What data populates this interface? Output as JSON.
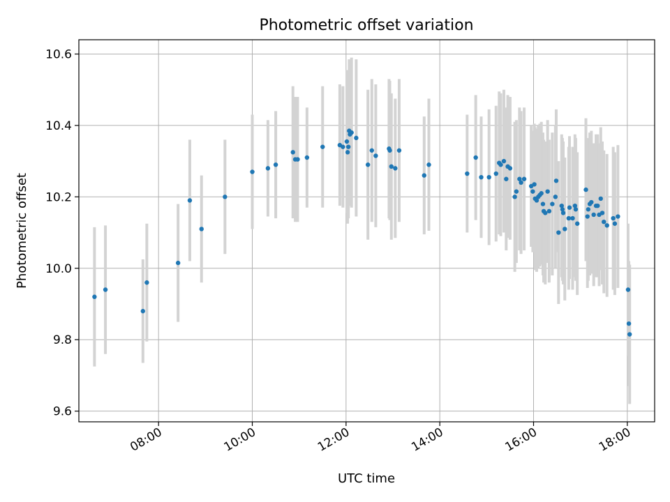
{
  "chart_data": {
    "type": "scatter",
    "title": "Photometric offset variation",
    "xlabel": "UTC time",
    "ylabel": "Photometric offset",
    "x_axis_kind": "time",
    "x_ticks": [
      "08:00",
      "10:00",
      "12:00",
      "14:00",
      "16:00",
      "18:00"
    ],
    "y_ticks": [
      "9.6",
      "9.8",
      "10.0",
      "10.2",
      "10.4",
      "10.6"
    ],
    "xlim": [
      "06:18",
      "18:35"
    ],
    "ylim": [
      9.57,
      10.64
    ],
    "grid": true,
    "legend": "none",
    "colors": {
      "points": "#1f77b4",
      "error_bars": "#d3d3d3",
      "grid": "#b0b0b0"
    },
    "points": [
      {
        "t": "06:38",
        "y": 9.92,
        "err": 0.195
      },
      {
        "t": "06:52",
        "y": 9.94,
        "err": 0.18
      },
      {
        "t": "07:40",
        "y": 9.88,
        "err": 0.145
      },
      {
        "t": "07:45",
        "y": 9.96,
        "err": 0.165
      },
      {
        "t": "08:25",
        "y": 10.015,
        "err": 0.165
      },
      {
        "t": "08:40",
        "y": 10.19,
        "err": 0.17
      },
      {
        "t": "08:55",
        "y": 10.11,
        "err": 0.15
      },
      {
        "t": "09:25",
        "y": 10.2,
        "err": 0.16
      },
      {
        "t": "10:00",
        "y": 10.27,
        "err": 0.16
      },
      {
        "t": "10:20",
        "y": 10.28,
        "err": 0.135
      },
      {
        "t": "10:30",
        "y": 10.29,
        "err": 0.15
      },
      {
        "t": "10:52",
        "y": 10.325,
        "err": 0.185
      },
      {
        "t": "10:55",
        "y": 10.305,
        "err": 0.175
      },
      {
        "t": "10:58",
        "y": 10.305,
        "err": 0.175
      },
      {
        "t": "11:10",
        "y": 10.31,
        "err": 0.14
      },
      {
        "t": "11:30",
        "y": 10.34,
        "err": 0.17
      },
      {
        "t": "11:52",
        "y": 10.345,
        "err": 0.17
      },
      {
        "t": "11:56",
        "y": 10.34,
        "err": 0.17
      },
      {
        "t": "12:01",
        "y": 10.355,
        "err": 0.2
      },
      {
        "t": "12:02",
        "y": 10.325,
        "err": 0.2
      },
      {
        "t": "12:03",
        "y": 10.34,
        "err": 0.2
      },
      {
        "t": "12:04",
        "y": 10.385,
        "err": 0.2
      },
      {
        "t": "12:05",
        "y": 10.375,
        "err": 0.2
      },
      {
        "t": "12:07",
        "y": 10.38,
        "err": 0.21
      },
      {
        "t": "12:13",
        "y": 10.365,
        "err": 0.22
      },
      {
        "t": "12:28",
        "y": 10.29,
        "err": 0.21
      },
      {
        "t": "12:33",
        "y": 10.33,
        "err": 0.2
      },
      {
        "t": "12:38",
        "y": 10.315,
        "err": 0.2
      },
      {
        "t": "12:55",
        "y": 10.335,
        "err": 0.195
      },
      {
        "t": "12:56",
        "y": 10.33,
        "err": 0.195
      },
      {
        "t": "12:58",
        "y": 10.285,
        "err": 0.205
      },
      {
        "t": "13:03",
        "y": 10.28,
        "err": 0.195
      },
      {
        "t": "13:08",
        "y": 10.33,
        "err": 0.2
      },
      {
        "t": "13:40",
        "y": 10.26,
        "err": 0.165
      },
      {
        "t": "13:46",
        "y": 10.29,
        "err": 0.185
      },
      {
        "t": "14:35",
        "y": 10.265,
        "err": 0.165
      },
      {
        "t": "14:46",
        "y": 10.31,
        "err": 0.175
      },
      {
        "t": "14:53",
        "y": 10.255,
        "err": 0.17
      },
      {
        "t": "15:03",
        "y": 10.255,
        "err": 0.19
      },
      {
        "t": "15:12",
        "y": 10.265,
        "err": 0.19
      },
      {
        "t": "15:16",
        "y": 10.295,
        "err": 0.2
      },
      {
        "t": "15:18",
        "y": 10.29,
        "err": 0.2
      },
      {
        "t": "15:22",
        "y": 10.3,
        "err": 0.2
      },
      {
        "t": "15:25",
        "y": 10.25,
        "err": 0.2
      },
      {
        "t": "15:27",
        "y": 10.285,
        "err": 0.2
      },
      {
        "t": "15:30",
        "y": 10.28,
        "err": 0.2
      },
      {
        "t": "15:36",
        "y": 10.2,
        "err": 0.21
      },
      {
        "t": "15:38",
        "y": 10.215,
        "err": 0.2
      },
      {
        "t": "15:42",
        "y": 10.25,
        "err": 0.2
      },
      {
        "t": "15:44",
        "y": 10.24,
        "err": 0.2
      },
      {
        "t": "15:48",
        "y": 10.25,
        "err": 0.2
      },
      {
        "t": "15:57",
        "y": 10.23,
        "err": 0.17
      },
      {
        "t": "15:59",
        "y": 10.215,
        "err": 0.17
      },
      {
        "t": "16:01",
        "y": 10.235,
        "err": 0.17
      },
      {
        "t": "16:02",
        "y": 10.195,
        "err": 0.2
      },
      {
        "t": "16:04",
        "y": 10.19,
        "err": 0.2
      },
      {
        "t": "16:06",
        "y": 10.2,
        "err": 0.2
      },
      {
        "t": "16:08",
        "y": 10.205,
        "err": 0.2
      },
      {
        "t": "16:10",
        "y": 10.21,
        "err": 0.2
      },
      {
        "t": "16:12",
        "y": 10.18,
        "err": 0.2
      },
      {
        "t": "16:13",
        "y": 10.16,
        "err": 0.2
      },
      {
        "t": "16:15",
        "y": 10.155,
        "err": 0.2
      },
      {
        "t": "16:18",
        "y": 10.215,
        "err": 0.2
      },
      {
        "t": "16:20",
        "y": 10.16,
        "err": 0.2
      },
      {
        "t": "16:24",
        "y": 10.18,
        "err": 0.2
      },
      {
        "t": "16:28",
        "y": 10.2,
        "err": 0.2
      },
      {
        "t": "16:29",
        "y": 10.245,
        "err": 0.2
      },
      {
        "t": "16:32",
        "y": 10.1,
        "err": 0.2
      },
      {
        "t": "16:36",
        "y": 10.175,
        "err": 0.2
      },
      {
        "t": "16:37",
        "y": 10.165,
        "err": 0.2
      },
      {
        "t": "16:38",
        "y": 10.155,
        "err": 0.2
      },
      {
        "t": "16:40",
        "y": 10.11,
        "err": 0.2
      },
      {
        "t": "16:45",
        "y": 10.14,
        "err": 0.2
      },
      {
        "t": "16:46",
        "y": 10.17,
        "err": 0.2
      },
      {
        "t": "16:50",
        "y": 10.14,
        "err": 0.2
      },
      {
        "t": "16:53",
        "y": 10.175,
        "err": 0.2
      },
      {
        "t": "16:54",
        "y": 10.165,
        "err": 0.2
      },
      {
        "t": "16:56",
        "y": 10.125,
        "err": 0.2
      },
      {
        "t": "17:07",
        "y": 10.22,
        "err": 0.2
      },
      {
        "t": "17:09",
        "y": 10.145,
        "err": 0.2
      },
      {
        "t": "17:10",
        "y": 10.165,
        "err": 0.2
      },
      {
        "t": "17:12",
        "y": 10.18,
        "err": 0.2
      },
      {
        "t": "17:14",
        "y": 10.185,
        "err": 0.2
      },
      {
        "t": "17:17",
        "y": 10.15,
        "err": 0.2
      },
      {
        "t": "17:20",
        "y": 10.175,
        "err": 0.2
      },
      {
        "t": "17:22",
        "y": 10.175,
        "err": 0.2
      },
      {
        "t": "17:24",
        "y": 10.15,
        "err": 0.2
      },
      {
        "t": "17:26",
        "y": 10.195,
        "err": 0.2
      },
      {
        "t": "17:28",
        "y": 10.155,
        "err": 0.2
      },
      {
        "t": "17:30",
        "y": 10.13,
        "err": 0.2
      },
      {
        "t": "17:34",
        "y": 10.12,
        "err": 0.2
      },
      {
        "t": "17:42",
        "y": 10.14,
        "err": 0.2
      },
      {
        "t": "17:44",
        "y": 10.125,
        "err": 0.2
      },
      {
        "t": "17:48",
        "y": 10.145,
        "err": 0.2
      },
      {
        "t": "18:01",
        "y": 9.94,
        "err": 0.185
      },
      {
        "t": "18:02",
        "y": 9.845,
        "err": 0.175
      },
      {
        "t": "18:03",
        "y": 9.815,
        "err": 0.195
      }
    ]
  }
}
